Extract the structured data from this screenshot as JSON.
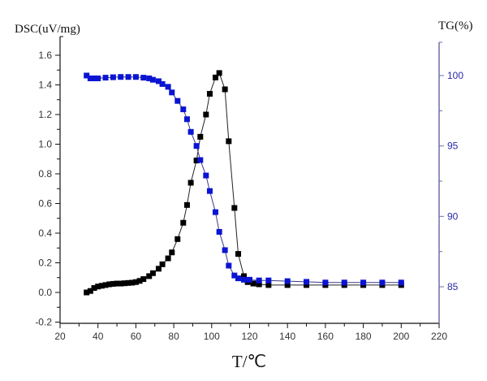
{
  "chart_data": {
    "type": "scatter",
    "title": "",
    "xlabel": "T/℃",
    "ylabel": "DSC(uV/mg)",
    "y2label": "TG(%)",
    "xlim": [
      20,
      220
    ],
    "ylim": [
      -0.2,
      1.7
    ],
    "y2lim": [
      83,
      103
    ],
    "xticks": [
      20,
      40,
      60,
      80,
      100,
      120,
      140,
      160,
      180,
      200,
      220
    ],
    "yticks": [
      -0.2,
      0.0,
      0.2,
      0.4,
      0.6,
      0.8,
      1.0,
      1.2,
      1.4,
      1.6
    ],
    "ytick_labels": [
      "-0.2",
      "0.0",
      "0.2",
      "0.4",
      "0.6",
      "0.8",
      "1.0",
      "1.2",
      "1.4",
      "1.6"
    ],
    "y2ticks": [
      85,
      90,
      95,
      100
    ],
    "grid": false,
    "legend": "none",
    "series": [
      {
        "name": "DSC",
        "axis": "left",
        "color": "#000000",
        "marker": "square",
        "line": true,
        "x": [
          34,
          36,
          38,
          40,
          42,
          44,
          46,
          48,
          50,
          52,
          54,
          56,
          58,
          60,
          62,
          64,
          67,
          69,
          72,
          74,
          77,
          79,
          82,
          85,
          87,
          89,
          92,
          94,
          97,
          99,
          102,
          104,
          107,
          109,
          112,
          114,
          117,
          119,
          122,
          125,
          130,
          140,
          150,
          160,
          170,
          180,
          190,
          200
        ],
        "y": [
          0.0,
          0.01,
          0.03,
          0.04,
          0.045,
          0.05,
          0.055,
          0.058,
          0.06,
          0.06,
          0.062,
          0.064,
          0.066,
          0.07,
          0.078,
          0.09,
          0.11,
          0.13,
          0.16,
          0.19,
          0.23,
          0.27,
          0.36,
          0.47,
          0.59,
          0.74,
          0.89,
          1.05,
          1.2,
          1.34,
          1.45,
          1.48,
          1.37,
          1.02,
          0.57,
          0.26,
          0.11,
          0.07,
          0.06,
          0.055,
          0.05,
          0.05,
          0.05,
          0.05,
          0.05,
          0.05,
          0.05,
          0.05
        ]
      },
      {
        "name": "TG",
        "axis": "right",
        "color": "#0a14d2",
        "marker": "square",
        "line": true,
        "x": [
          34,
          36,
          38,
          40,
          44,
          48,
          52,
          56,
          60,
          64,
          67,
          69,
          72,
          74,
          77,
          79,
          82,
          85,
          87,
          89,
          92,
          94,
          97,
          99,
          102,
          104,
          107,
          109,
          112,
          114,
          117,
          120,
          125,
          130,
          140,
          150,
          160,
          170,
          180,
          190,
          200
        ],
        "y": [
          100.0,
          99.8,
          99.8,
          99.8,
          99.85,
          99.88,
          99.9,
          99.9,
          99.9,
          99.85,
          99.8,
          99.7,
          99.6,
          99.4,
          99.2,
          98.8,
          98.2,
          97.6,
          96.9,
          96.0,
          95.0,
          94.0,
          92.9,
          91.8,
          90.3,
          88.9,
          87.6,
          86.5,
          85.8,
          85.6,
          85.5,
          85.5,
          85.45,
          85.45,
          85.4,
          85.35,
          85.3,
          85.3,
          85.3,
          85.3,
          85.3
        ]
      }
    ]
  }
}
